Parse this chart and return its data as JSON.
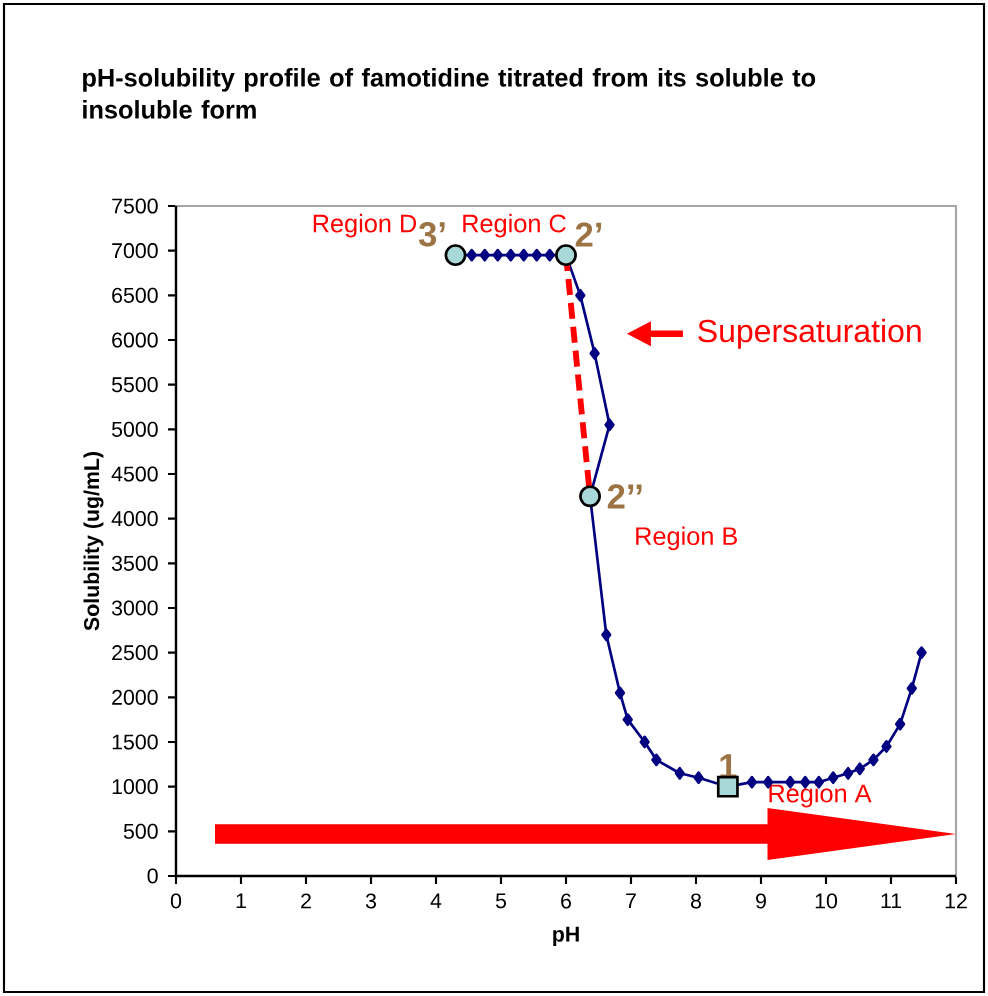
{
  "chart_data": {
    "type": "line",
    "title": "pH-solubility profile of famotidine titrated from its soluble to insoluble form",
    "xlabel": "pH",
    "ylabel": "Solubility (ug/mL)",
    "xlim": [
      0,
      12
    ],
    "xticks": [
      0,
      1,
      2,
      3,
      4,
      5,
      6,
      7,
      8,
      9,
      10,
      11,
      12
    ],
    "ylim": [
      0,
      7500
    ],
    "yticks": [
      0,
      500,
      1000,
      1500,
      2000,
      2500,
      3000,
      3500,
      4000,
      4500,
      5000,
      5500,
      6000,
      6500,
      7000,
      7500
    ],
    "series": [
      {
        "color": "#000080",
        "marker": "diamond",
        "line_style": "solid",
        "x": [
          4.3,
          4.55,
          4.75,
          4.95,
          5.15,
          5.35,
          5.55,
          5.75,
          6.0,
          6.22,
          6.44,
          6.67,
          6.37,
          6.62,
          6.83,
          6.95,
          7.21,
          7.39,
          7.75,
          8.04,
          8.49,
          8.86,
          9.11,
          9.45,
          9.68,
          9.89,
          10.11,
          10.34,
          10.52,
          10.73,
          10.93,
          11.14,
          11.32,
          11.47
        ],
        "values": [
          6950,
          6950,
          6950,
          6950,
          6950,
          6950,
          6950,
          6950,
          6950,
          6500,
          5850,
          5050,
          4250,
          2700,
          2050,
          1750,
          1500,
          1300,
          1150,
          1100,
          1000,
          1050,
          1050,
          1050,
          1050,
          1050,
          1100,
          1150,
          1200,
          1300,
          1450,
          1700,
          2100,
          2500
        ]
      },
      {
        "color": "#ff0000",
        "marker": "none",
        "line_style": "dashed",
        "x": [
          6.0,
          6.37
        ],
        "values": [
          6950,
          4250
        ]
      },
      {
        "type": "scatter",
        "name": "3’",
        "color": "#a8d8d8",
        "marker": "circle",
        "x": [
          4.3
        ],
        "values": [
          6950
        ]
      },
      {
        "type": "scatter",
        "name": "2’",
        "color": "#a8d8d8",
        "marker": "circle",
        "x": [
          6.0
        ],
        "values": [
          6950
        ]
      },
      {
        "type": "scatter",
        "name": "2’’",
        "color": "#a8d8d8",
        "marker": "circle",
        "x": [
          6.37
        ],
        "values": [
          4250
        ]
      },
      {
        "type": "scatter",
        "name": "1",
        "color": "#a8d8d8",
        "marker": "square",
        "x": [
          8.49
        ],
        "values": [
          1000
        ]
      }
    ],
    "annotations": [
      "Region D",
      "Region C",
      "Supersaturation",
      "Region B",
      "Region A"
    ]
  }
}
